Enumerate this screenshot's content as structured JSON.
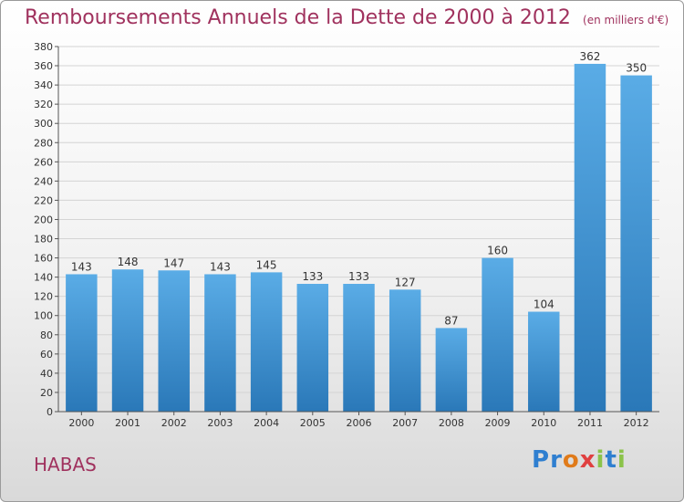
{
  "header": {
    "title": "Remboursements Annuels de la Dette de 2000 à 2012",
    "unit": "(en milliers d'€)"
  },
  "commune": "HABAS",
  "logo": {
    "letters": [
      {
        "ch": "P",
        "color": "#2f7fd0"
      },
      {
        "ch": "r",
        "color": "#2f7fd0"
      },
      {
        "ch": "o",
        "color": "#e07b1a"
      },
      {
        "ch": "x",
        "color": "#e04040"
      },
      {
        "ch": "i",
        "color": "#8bc34a"
      },
      {
        "ch": "t",
        "color": "#2f7fd0"
      },
      {
        "ch": "i",
        "color": "#8bc34a"
      }
    ]
  },
  "chart_data": {
    "type": "bar",
    "title": "Remboursements Annuels de la Dette de 2000 à 2012",
    "categories": [
      "2000",
      "2001",
      "2002",
      "2003",
      "2004",
      "2005",
      "2006",
      "2007",
      "2008",
      "2009",
      "2010",
      "2011",
      "2012"
    ],
    "values": [
      143,
      148,
      147,
      143,
      145,
      133,
      133,
      127,
      87,
      160,
      104,
      362,
      350
    ],
    "ylim": [
      0,
      380
    ],
    "ytick_step": 20,
    "grid": true,
    "bar_color_top": "#5aace6",
    "bar_color_bottom": "#2a78b8"
  }
}
